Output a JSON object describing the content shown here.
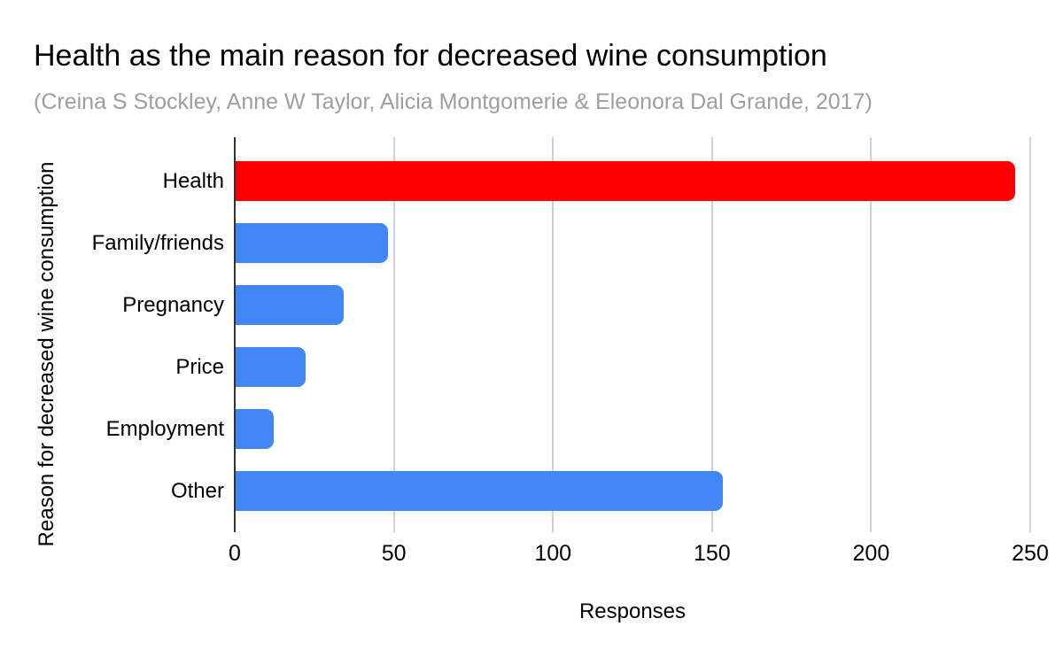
{
  "title": "Health as the main reason for decreased wine consumption",
  "subtitle": "(Creina S Stockley, Anne W Taylor, Alicia Montgomerie & Eleonora Dal Grande, 2017)",
  "chart_data": {
    "type": "bar",
    "orientation": "horizontal",
    "title": "Health as the main reason for decreased wine consumption",
    "subtitle": "(Creina S Stockley, Anne W Taylor, Alicia Montgomerie & Eleonora Dal Grande, 2017)",
    "categories": [
      "Health",
      "Family/friends",
      "Pregnancy",
      "Price",
      "Employment",
      "Other"
    ],
    "values": [
      245,
      48,
      34,
      22,
      12,
      153
    ],
    "bar_colors": [
      "#ff0000",
      "#4285f4",
      "#4285f4",
      "#4285f4",
      "#4285f4",
      "#4285f4"
    ],
    "xlabel": "Responses",
    "ylabel": "Reason for decreased wine consumption",
    "xlim": [
      0,
      250
    ],
    "xticks": [
      0,
      50,
      100,
      150,
      200,
      250
    ],
    "grid": true,
    "legend": false
  },
  "colors": {
    "highlight_red": "#ff0000",
    "bar_blue": "#4285f4",
    "gridline": "#d0d0d0",
    "axis_line": "#333333",
    "subtitle_gray": "#9e9e9e",
    "background": "#ffffff"
  }
}
